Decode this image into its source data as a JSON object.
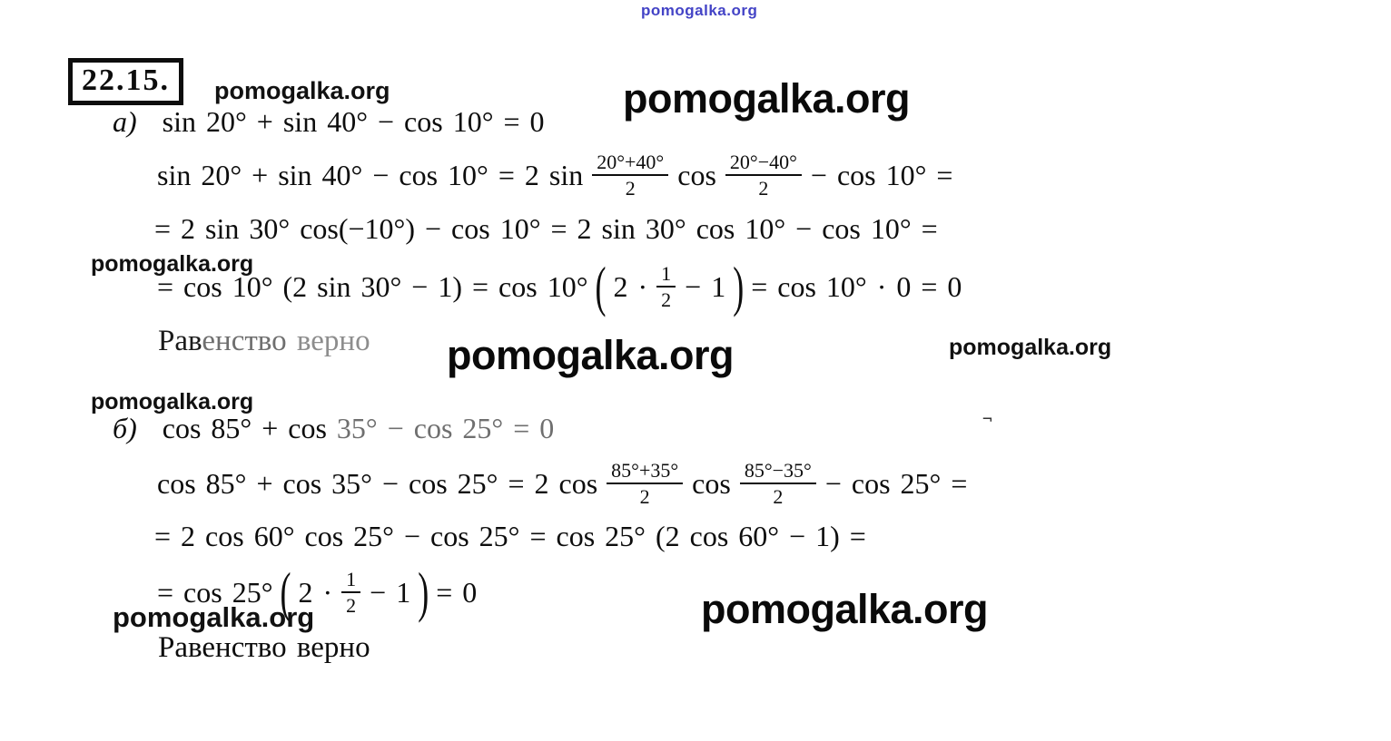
{
  "watermark": {
    "text": "pomogalka.org",
    "blue_color": "#4343c6",
    "black_color": "#0a0a0a"
  },
  "header": {
    "problem_number": "22.15."
  },
  "part_a": {
    "label": "а)",
    "statement": "sin 20° + sin 40° − cos 10° = 0",
    "step1": {
      "seg1": "sin 20° + sin 40° − cos 10° = 2 sin",
      "frac1": {
        "num": "20°+40°",
        "den": "2"
      },
      "seg2": "cos",
      "frac2": {
        "num": "20°−40°",
        "den": "2"
      },
      "seg3": "− cos 10° ="
    },
    "step2": "= 2 sin 30° cos(−10°) − cos 10° = 2 sin 30° cos 10° − cos 10° =",
    "step3": {
      "seg1": "= cos 10° (2 sin 30° − 1) = cos 10°",
      "lparen": "(",
      "seg2": "2 ·",
      "frac": {
        "num": "1",
        "den": "2"
      },
      "seg3": "− 1",
      "rparen": ")",
      "seg4": "= cos 10° · 0 = 0"
    },
    "conclusion": {
      "seg1": "Рав",
      "seg2": "енство ",
      "seg3": "верно"
    }
  },
  "part_b": {
    "label": "б)",
    "statement": {
      "seg1": "cos 85° + cos",
      "seg2": "35° − cos 25° = 0"
    },
    "step1": {
      "seg1": "cos 85° + cos 35° − cos 25° = 2 cos",
      "frac1": {
        "num": "85°+35°",
        "den": "2"
      },
      "seg2": "cos",
      "frac2": {
        "num": "85°−35°",
        "den": "2"
      },
      "seg3": "− cos 25° ="
    },
    "step2": "= 2 cos 60° cos 25° − cos 25° = cos 25° (2 cos 60° − 1) =",
    "step3": {
      "seg1": "= cos 25°",
      "lparen": "(",
      "seg2": "2 ·",
      "frac": {
        "num": "1",
        "den": "2"
      },
      "seg3": "− 1",
      "rparen": ")",
      "seg4": "= 0"
    },
    "conclusion": "Равенство верно"
  },
  "stray_mark": "¬"
}
